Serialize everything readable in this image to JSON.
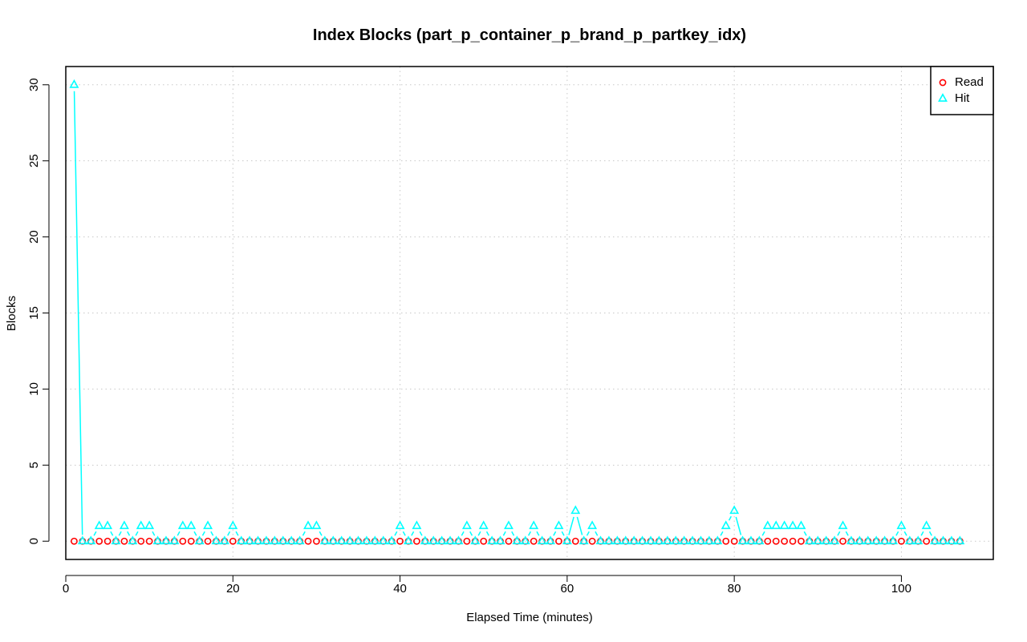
{
  "chart_data": {
    "type": "line",
    "title": "Index Blocks (part_p_container_p_brand_p_partkey_idx)",
    "xlabel": "Elapsed Time (minutes)",
    "ylabel": "Blocks",
    "xlim": [
      0,
      111
    ],
    "ylim": [
      -1.2,
      31.2
    ],
    "xticks": [
      0,
      20,
      40,
      60,
      80,
      100
    ],
    "yticks": [
      0,
      5,
      10,
      15,
      20,
      25,
      30
    ],
    "grid": true,
    "legend_position": "top-right",
    "x_start": 1,
    "x_end": 107,
    "series": [
      {
        "name": "Read",
        "color": "#ff0000",
        "marker": "circle",
        "values": [
          0,
          0,
          0,
          0,
          0,
          0,
          0,
          0,
          0,
          0,
          0,
          0,
          0,
          0,
          0,
          0,
          0,
          0,
          0,
          0,
          0,
          0,
          0,
          0,
          0,
          0,
          0,
          0,
          0,
          0,
          0,
          0,
          0,
          0,
          0,
          0,
          0,
          0,
          0,
          0,
          0,
          0,
          0,
          0,
          0,
          0,
          0,
          0,
          0,
          0,
          0,
          0,
          0,
          0,
          0,
          0,
          0,
          0,
          0,
          0,
          0,
          0,
          0,
          0,
          0,
          0,
          0,
          0,
          0,
          0,
          0,
          0,
          0,
          0,
          0,
          0,
          0,
          0,
          0,
          0,
          0,
          0,
          0,
          0,
          0,
          0,
          0,
          0,
          0,
          0,
          0,
          0,
          0,
          0,
          0,
          0,
          0,
          0,
          0,
          0,
          0,
          0,
          0,
          0,
          0,
          0,
          0
        ]
      },
      {
        "name": "Hit",
        "color": "#00ffff",
        "marker": "triangle",
        "values": [
          30,
          0,
          0,
          1,
          1,
          0,
          1,
          0,
          1,
          1,
          0,
          0,
          0,
          1,
          1,
          0,
          1,
          0,
          0,
          1,
          0,
          0,
          0,
          0,
          0,
          0,
          0,
          0,
          1,
          1,
          0,
          0,
          0,
          0,
          0,
          0,
          0,
          0,
          0,
          1,
          0,
          1,
          0,
          0,
          0,
          0,
          0,
          1,
          0,
          1,
          0,
          0,
          1,
          0,
          0,
          1,
          0,
          0,
          1,
          0,
          2,
          0,
          1,
          0,
          0,
          0,
          0,
          0,
          0,
          0,
          0,
          0,
          0,
          0,
          0,
          0,
          0,
          0,
          1,
          2,
          0,
          0,
          0,
          1,
          1,
          1,
          1,
          1,
          0,
          0,
          0,
          0,
          1,
          0,
          0,
          0,
          0,
          0,
          0,
          1,
          0,
          0,
          1,
          0,
          0,
          0,
          0
        ]
      }
    ]
  }
}
